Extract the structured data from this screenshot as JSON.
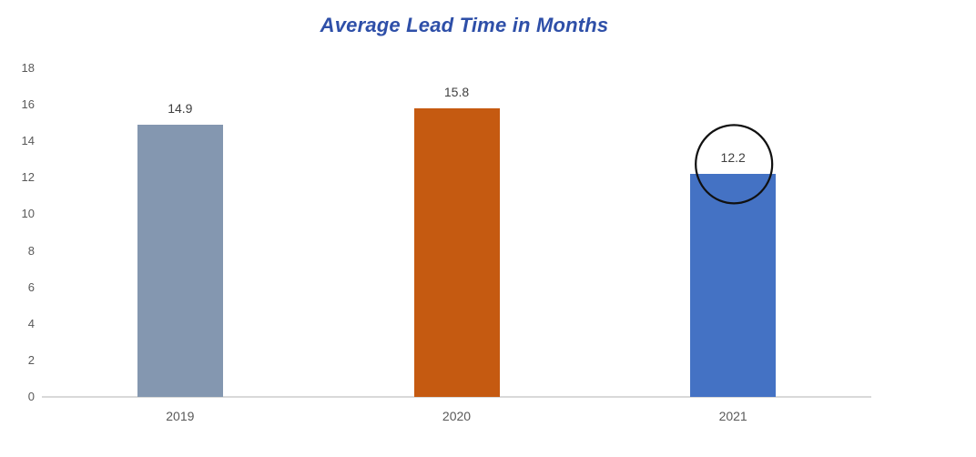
{
  "chart_data": {
    "type": "bar",
    "title": "Average Lead Time in Months",
    "categories": [
      "2019",
      "2020",
      "2021"
    ],
    "values": [
      14.9,
      15.8,
      12.2
    ],
    "data_labels": [
      "14.9",
      "15.8",
      "12.2"
    ],
    "bar_colors": [
      "#8497B0",
      "#C55A11",
      "#4472C4"
    ],
    "yticks": [
      0,
      2,
      4,
      6,
      8,
      10,
      12,
      14,
      16,
      18
    ],
    "ylim": [
      0,
      18
    ],
    "xlabel": "",
    "ylabel": "",
    "grid": false,
    "legend": "none",
    "annotation": {
      "type": "circle-highlight",
      "target_category": "2021",
      "target_value": 12.2,
      "stroke_color": "#111111"
    },
    "colors": {
      "title": "#2E4FA8",
      "axis_line": "#D9D9D9",
      "tick_labels": "#595959",
      "data_labels": "#3F3F3F",
      "background": "#FFFFFF"
    }
  }
}
